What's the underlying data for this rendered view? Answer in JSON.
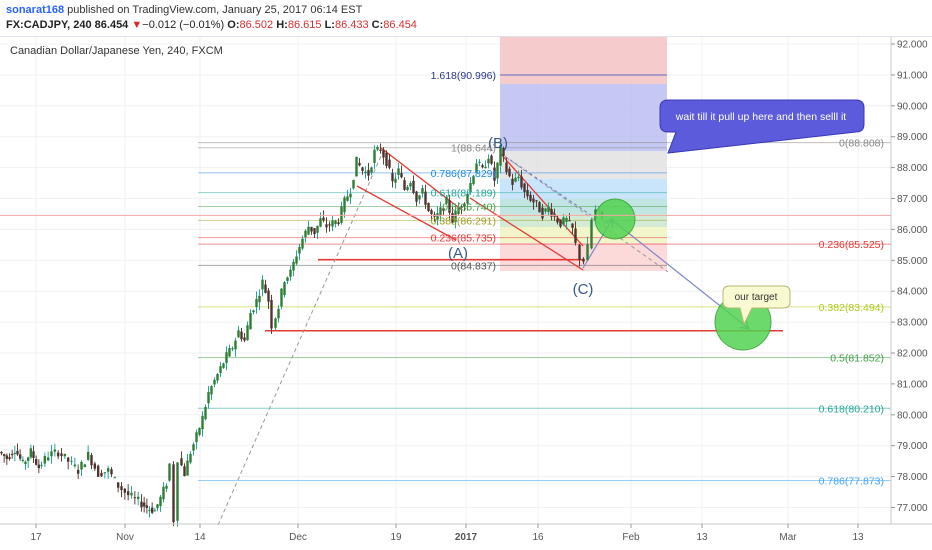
{
  "header": {
    "author": "sonarat168",
    "published": "published on TradingView.com, January 25, 2017 06:14 EST",
    "symbol": "FX:CADJPY, 240",
    "last": "86.454",
    "change_arrow": "▼",
    "change": "−0.012 (−0.01%)",
    "o_label": "O:",
    "o": "86.502",
    "h_label": "H:",
    "h": "86.615",
    "l_label": "L:",
    "l": "86.433",
    "c_label": "C:",
    "c": "86.454"
  },
  "chart_data": {
    "type": "candlestick",
    "title": "Canadian Dollar/Japanese Yen, 240, FXCM",
    "ylim": [
      76.3,
      92.45
    ],
    "x_tick_labels": [
      "17",
      "Nov",
      "14",
      "Dec",
      "19",
      "2017",
      "16",
      "Feb",
      "13",
      "Mar",
      "13"
    ],
    "y_tick_labels": [
      "77.000",
      "78.000",
      "79.000",
      "80.000",
      "81.000",
      "82.000",
      "83.000",
      "84.000",
      "85.000",
      "86.000",
      "87.000",
      "88.000",
      "89.000",
      "90.000",
      "91.000",
      "92.000"
    ],
    "current_price": 86.454,
    "price_path": [
      [
        0,
        78.8
      ],
      [
        8,
        78.6
      ],
      [
        16,
        78.9
      ],
      [
        24,
        78.4
      ],
      [
        32,
        78.8
      ],
      [
        40,
        78.3
      ],
      [
        50,
        78.7
      ],
      [
        60,
        78.8
      ],
      [
        70,
        78.5
      ],
      [
        80,
        78.2
      ],
      [
        90,
        78.7
      ],
      [
        100,
        78.1
      ],
      [
        110,
        78.2
      ],
      [
        120,
        77.7
      ],
      [
        130,
        77.4
      ],
      [
        140,
        77.2
      ],
      [
        148,
        77.0
      ],
      [
        156,
        76.9
      ],
      [
        162,
        77.3
      ],
      [
        168,
        77.8
      ],
      [
        172,
        78.4
      ],
      [
        176,
        76.6
      ],
      [
        180,
        78.6
      ],
      [
        186,
        78.1
      ],
      [
        192,
        78.8
      ],
      [
        198,
        79.3
      ],
      [
        204,
        79.9
      ],
      [
        210,
        80.7
      ],
      [
        216,
        81.1
      ],
      [
        222,
        81.5
      ],
      [
        228,
        81.9
      ],
      [
        234,
        82.2
      ],
      [
        240,
        82.7
      ],
      [
        246,
        82.4
      ],
      [
        252,
        83.3
      ],
      [
        258,
        83.7
      ],
      [
        264,
        84.3
      ],
      [
        270,
        83.7
      ],
      [
        274,
        82.9
      ],
      [
        280,
        83.5
      ],
      [
        286,
        84.4
      ],
      [
        292,
        84.6
      ],
      [
        298,
        85.2
      ],
      [
        304,
        85.7
      ],
      [
        310,
        86.1
      ],
      [
        316,
        85.9
      ],
      [
        322,
        86.3
      ],
      [
        328,
        86.1
      ],
      [
        334,
        86.2
      ],
      [
        340,
        86.3
      ],
      [
        346,
        86.9
      ],
      [
        352,
        87.3
      ],
      [
        358,
        88.2
      ],
      [
        364,
        87.9
      ],
      [
        370,
        87.8
      ],
      [
        376,
        88.5
      ],
      [
        382,
        88.6
      ],
      [
        388,
        88.2
      ],
      [
        394,
        87.5
      ],
      [
        400,
        87.9
      ],
      [
        406,
        87.3
      ],
      [
        412,
        87.6
      ],
      [
        418,
        87.0
      ],
      [
        424,
        87.2
      ],
      [
        430,
        86.6
      ],
      [
        436,
        86.3
      ],
      [
        442,
        86.6
      ],
      [
        448,
        86.9
      ],
      [
        454,
        86.3
      ],
      [
        460,
        86.7
      ],
      [
        466,
        86.9
      ],
      [
        472,
        87.5
      ],
      [
        478,
        88.2
      ],
      [
        484,
        87.9
      ],
      [
        490,
        88.4
      ],
      [
        496,
        87.6
      ],
      [
        502,
        88.6
      ],
      [
        508,
        87.9
      ],
      [
        514,
        87.5
      ],
      [
        520,
        87.7
      ],
      [
        526,
        87.2
      ],
      [
        532,
        87.0
      ],
      [
        538,
        86.8
      ],
      [
        544,
        86.5
      ],
      [
        550,
        86.7
      ],
      [
        556,
        86.4
      ],
      [
        562,
        86.2
      ],
      [
        568,
        86.3
      ],
      [
        574,
        86.0
      ],
      [
        578,
        85.5
      ],
      [
        582,
        85.1
      ],
      [
        586,
        85.0
      ],
      [
        590,
        85.4
      ],
      [
        594,
        86.3
      ],
      [
        598,
        86.6
      ],
      [
        603,
        86.45
      ]
    ],
    "horizontal_lines": [
      {
        "value": 85.02,
        "color": "#e53935"
      },
      {
        "value": 82.72,
        "color": "#e53935"
      }
    ],
    "fib_right": [
      {
        "label": "0(88.808)",
        "value": 88.808,
        "color": "#888888"
      },
      {
        "label": "0.236(85.525)",
        "value": 85.525,
        "color": "#e53935"
      },
      {
        "label": "0.382(83.494)",
        "value": 83.494,
        "color": "#b5c81e"
      },
      {
        "label": "0.5(81.852)",
        "value": 81.852,
        "color": "#43a047"
      },
      {
        "label": "0.618(80.210)",
        "value": 80.21,
        "color": "#26a69a"
      },
      {
        "label": "0.786(77.873)",
        "value": 77.873,
        "color": "#42a5f5"
      }
    ],
    "fib_box_labels": [
      {
        "label": "1.618(90.996)",
        "value": 90.996,
        "color": "#283593"
      },
      {
        "label": "1(88.644)",
        "value": 88.644,
        "color": "#888888"
      },
      {
        "label": "0.786(87.829)",
        "value": 87.829,
        "color": "#1e88e5"
      },
      {
        "label": "0.618(87.189)",
        "value": 87.189,
        "color": "#26a69a"
      },
      {
        "label": "0.5(86.740)",
        "value": 86.74,
        "color": "#43a047"
      },
      {
        "label": "0.382(86.291)",
        "value": 86.291,
        "color": "#9e9d24"
      },
      {
        "label": "0.236(85.735)",
        "value": 85.735,
        "color": "#e53935"
      },
      {
        "label": "0(84.837)",
        "value": 84.837,
        "color": "#555555"
      }
    ],
    "wave_labels": [
      "(B)",
      "(A)",
      "(C)"
    ],
    "annotations": [
      "wait till it pull up here and then selll it",
      "our target"
    ]
  }
}
